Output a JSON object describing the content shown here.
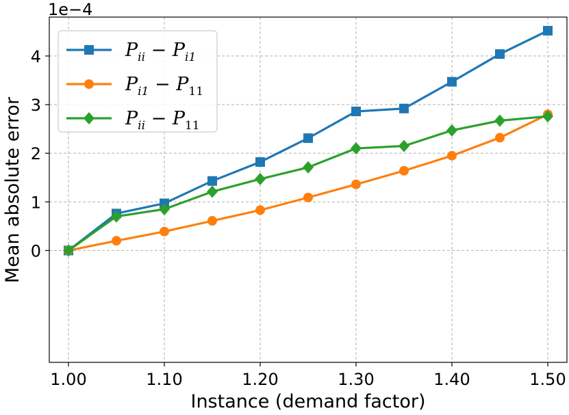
{
  "chart_data": {
    "type": "line",
    "x": [
      1.0,
      1.05,
      1.1,
      1.15,
      1.2,
      1.25,
      1.3,
      1.35,
      1.4,
      1.45,
      1.5
    ],
    "xticks": [
      "1.00",
      "1.10",
      "1.20",
      "1.30",
      "1.40",
      "1.50"
    ],
    "yticks": [
      "0",
      "1",
      "2",
      "3",
      "4"
    ],
    "offset_text": "1e−4",
    "xlabel": "Instance (demand factor)",
    "ylabel": "Mean absolute error",
    "xlim": [
      0.98,
      1.52
    ],
    "ylim": [
      -0.00023,
      0.00048
    ],
    "grid": true,
    "legend_position": "upper-left",
    "series": [
      {
        "name_main": "P",
        "name_sub1": "ii",
        "name_op": " − ",
        "name_main2": "P",
        "name_sub2": "i1",
        "name": "Pii − Pi1",
        "color": "#1f77b4",
        "marker": "square",
        "values": [
          0.0,
          7.6e-05,
          9.7e-05,
          0.000143,
          0.000182,
          0.000231,
          0.000286,
          0.000292,
          0.000347,
          0.000404,
          0.000452
        ]
      },
      {
        "name_main": "P",
        "name_sub1": "i1",
        "name_op": " − ",
        "name_main2": "P",
        "name_sub2": "11",
        "name": "Pi1 − P11",
        "color": "#ff7f0e",
        "marker": "circle",
        "values": [
          0.0,
          2e-05,
          3.9e-05,
          6.1e-05,
          8.3e-05,
          0.000109,
          0.000136,
          0.000164,
          0.000195,
          0.000232,
          0.00028
        ]
      },
      {
        "name_main": "P",
        "name_sub1": "ii",
        "name_op": " − ",
        "name_main2": "P",
        "name_sub2": "11",
        "name": "Pii − P11",
        "color": "#2ca02c",
        "marker": "diamond",
        "values": [
          0.0,
          7e-05,
          8.5e-05,
          0.000121,
          0.000147,
          0.000171,
          0.00021,
          0.000215,
          0.000247,
          0.000267,
          0.000276
        ]
      }
    ]
  }
}
